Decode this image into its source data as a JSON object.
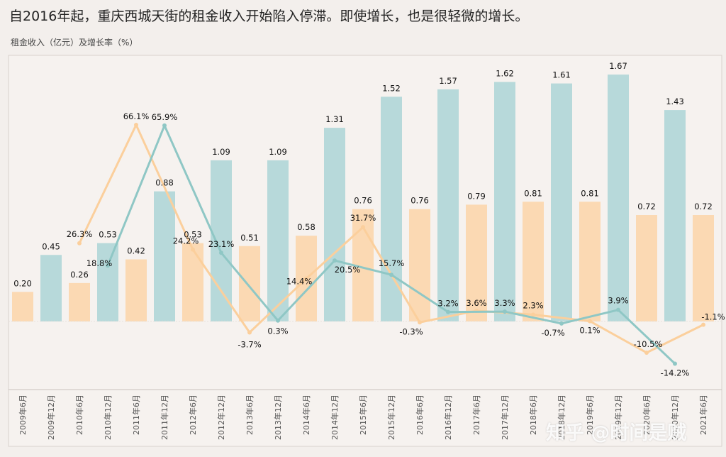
{
  "title": "自2016年起，重庆西城天街的租金收入开始陷入停滞。即使增长，也是很轻微的增长。",
  "subtitle": "租金收入（亿元）及增长率（%）",
  "watermark": "知乎 @时间是贼",
  "colors": {
    "h1": "#fbd9b3",
    "h2": "#b7d9da",
    "h1_line": "#fbcf9c",
    "h2_line": "#8fc7c5",
    "background": "#f3efec",
    "plot_bg": "#f6f2ef"
  },
  "chart_data": {
    "type": "bar",
    "categories": [
      "2009年6月",
      "2009年12月",
      "2010年6月",
      "2010年12月",
      "2011年6月",
      "2011年12月",
      "2012年6月",
      "2012年12月",
      "2013年6月",
      "2013年12月",
      "2014年6月",
      "2014年12月",
      "2015年6月",
      "2015年12月",
      "2016年6月",
      "2016年12月",
      "2017年6月",
      "2017年12月",
      "2018年6月",
      "2018年12月",
      "2019年6月",
      "2019年12月",
      "2020年6月",
      "2020年12月",
      "2021年6月"
    ],
    "values": [
      0.2,
      0.45,
      0.26,
      0.53,
      0.42,
      0.88,
      0.53,
      1.09,
      0.51,
      1.09,
      0.58,
      1.31,
      0.76,
      1.52,
      0.76,
      1.57,
      0.79,
      1.62,
      0.81,
      1.61,
      0.81,
      1.67,
      0.72,
      1.43,
      0.72
    ],
    "value_labels": [
      "0.20",
      "0.45",
      "0.26",
      "0.53",
      "0.42",
      "0.88",
      "0.53",
      "1.09",
      "0.51",
      "1.09",
      "0.58",
      "1.31",
      "0.76",
      "1.52",
      "0.76",
      "1.57",
      "0.79",
      "1.62",
      "0.81",
      "1.61",
      "0.81",
      "1.67",
      "0.72",
      "1.43",
      "0.72"
    ],
    "ylabel": "租金收入（亿元）",
    "ylim": [
      0,
      1.8
    ],
    "growth_lines": [
      {
        "values": [
          26.3,
          66.1,
          24.2,
          -3.7,
          14.4,
          31.7,
          -0.3,
          3.6,
          2.3,
          0.1,
          -10.5,
          -1.1
        ],
        "labels": [
          "26.3%",
          "66.1%",
          "24.2%",
          "-3.7%",
          "14.4%",
          "31.7%",
          "-0.3%",
          "3.6%",
          "2.3%",
          "0.1%",
          "-10.5%",
          "-1.1%"
        ],
        "category_index": [
          2,
          4,
          6,
          8,
          10,
          12,
          14,
          16,
          18,
          20,
          22,
          24
        ]
      },
      {
        "values": [
          18.8,
          65.9,
          23.1,
          0.3,
          20.5,
          15.7,
          3.2,
          3.3,
          -0.7,
          3.9,
          -14.2
        ],
        "labels": [
          "18.8%",
          "65.9%",
          "23.1%",
          "0.3%",
          "20.5%",
          "15.7%",
          "3.2%",
          "3.3%",
          "-0.7%",
          "3.9%",
          "-14.2%"
        ],
        "category_index": [
          3,
          5,
          7,
          9,
          11,
          13,
          15,
          17,
          19,
          21,
          23
        ]
      }
    ],
    "growth_ylim": [
      -20,
      75
    ],
    "grid": false,
    "legend": "none"
  }
}
